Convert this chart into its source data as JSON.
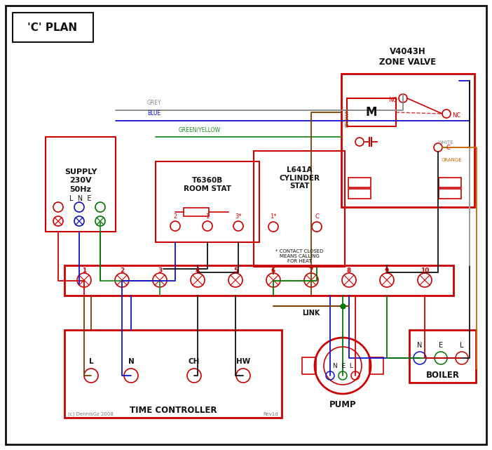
{
  "title": "'C' PLAN",
  "bg_color": "#ffffff",
  "red": "#cc0000",
  "blue": "#1010cc",
  "green": "#007700",
  "grey": "#888888",
  "brown": "#7B3F00",
  "orange": "#CC6600",
  "black": "#111111",
  "green_yellow": "#228B22",
  "supply_text": "SUPPLY\n230V\n50Hz",
  "supply_lne": "L  N  E",
  "zone_valve_title": "V4043H\nZONE VALVE",
  "room_stat_title": "T6360B\nROOM STAT",
  "cylinder_stat_title": "L641A\nCYLINDER\nSTAT",
  "time_controller_title": "TIME CONTROLLER",
  "pump_title": "PUMP",
  "boiler_title": "BOILER",
  "link_text": "LINK",
  "terminal_labels": [
    "1",
    "2",
    "3",
    "4",
    "5",
    "6",
    "7",
    "8",
    "9",
    "10"
  ],
  "tc_labels": [
    "L",
    "N",
    "CH",
    "HW"
  ],
  "copyright": "(c) DennisGz 2008",
  "rev": "Rev1d"
}
